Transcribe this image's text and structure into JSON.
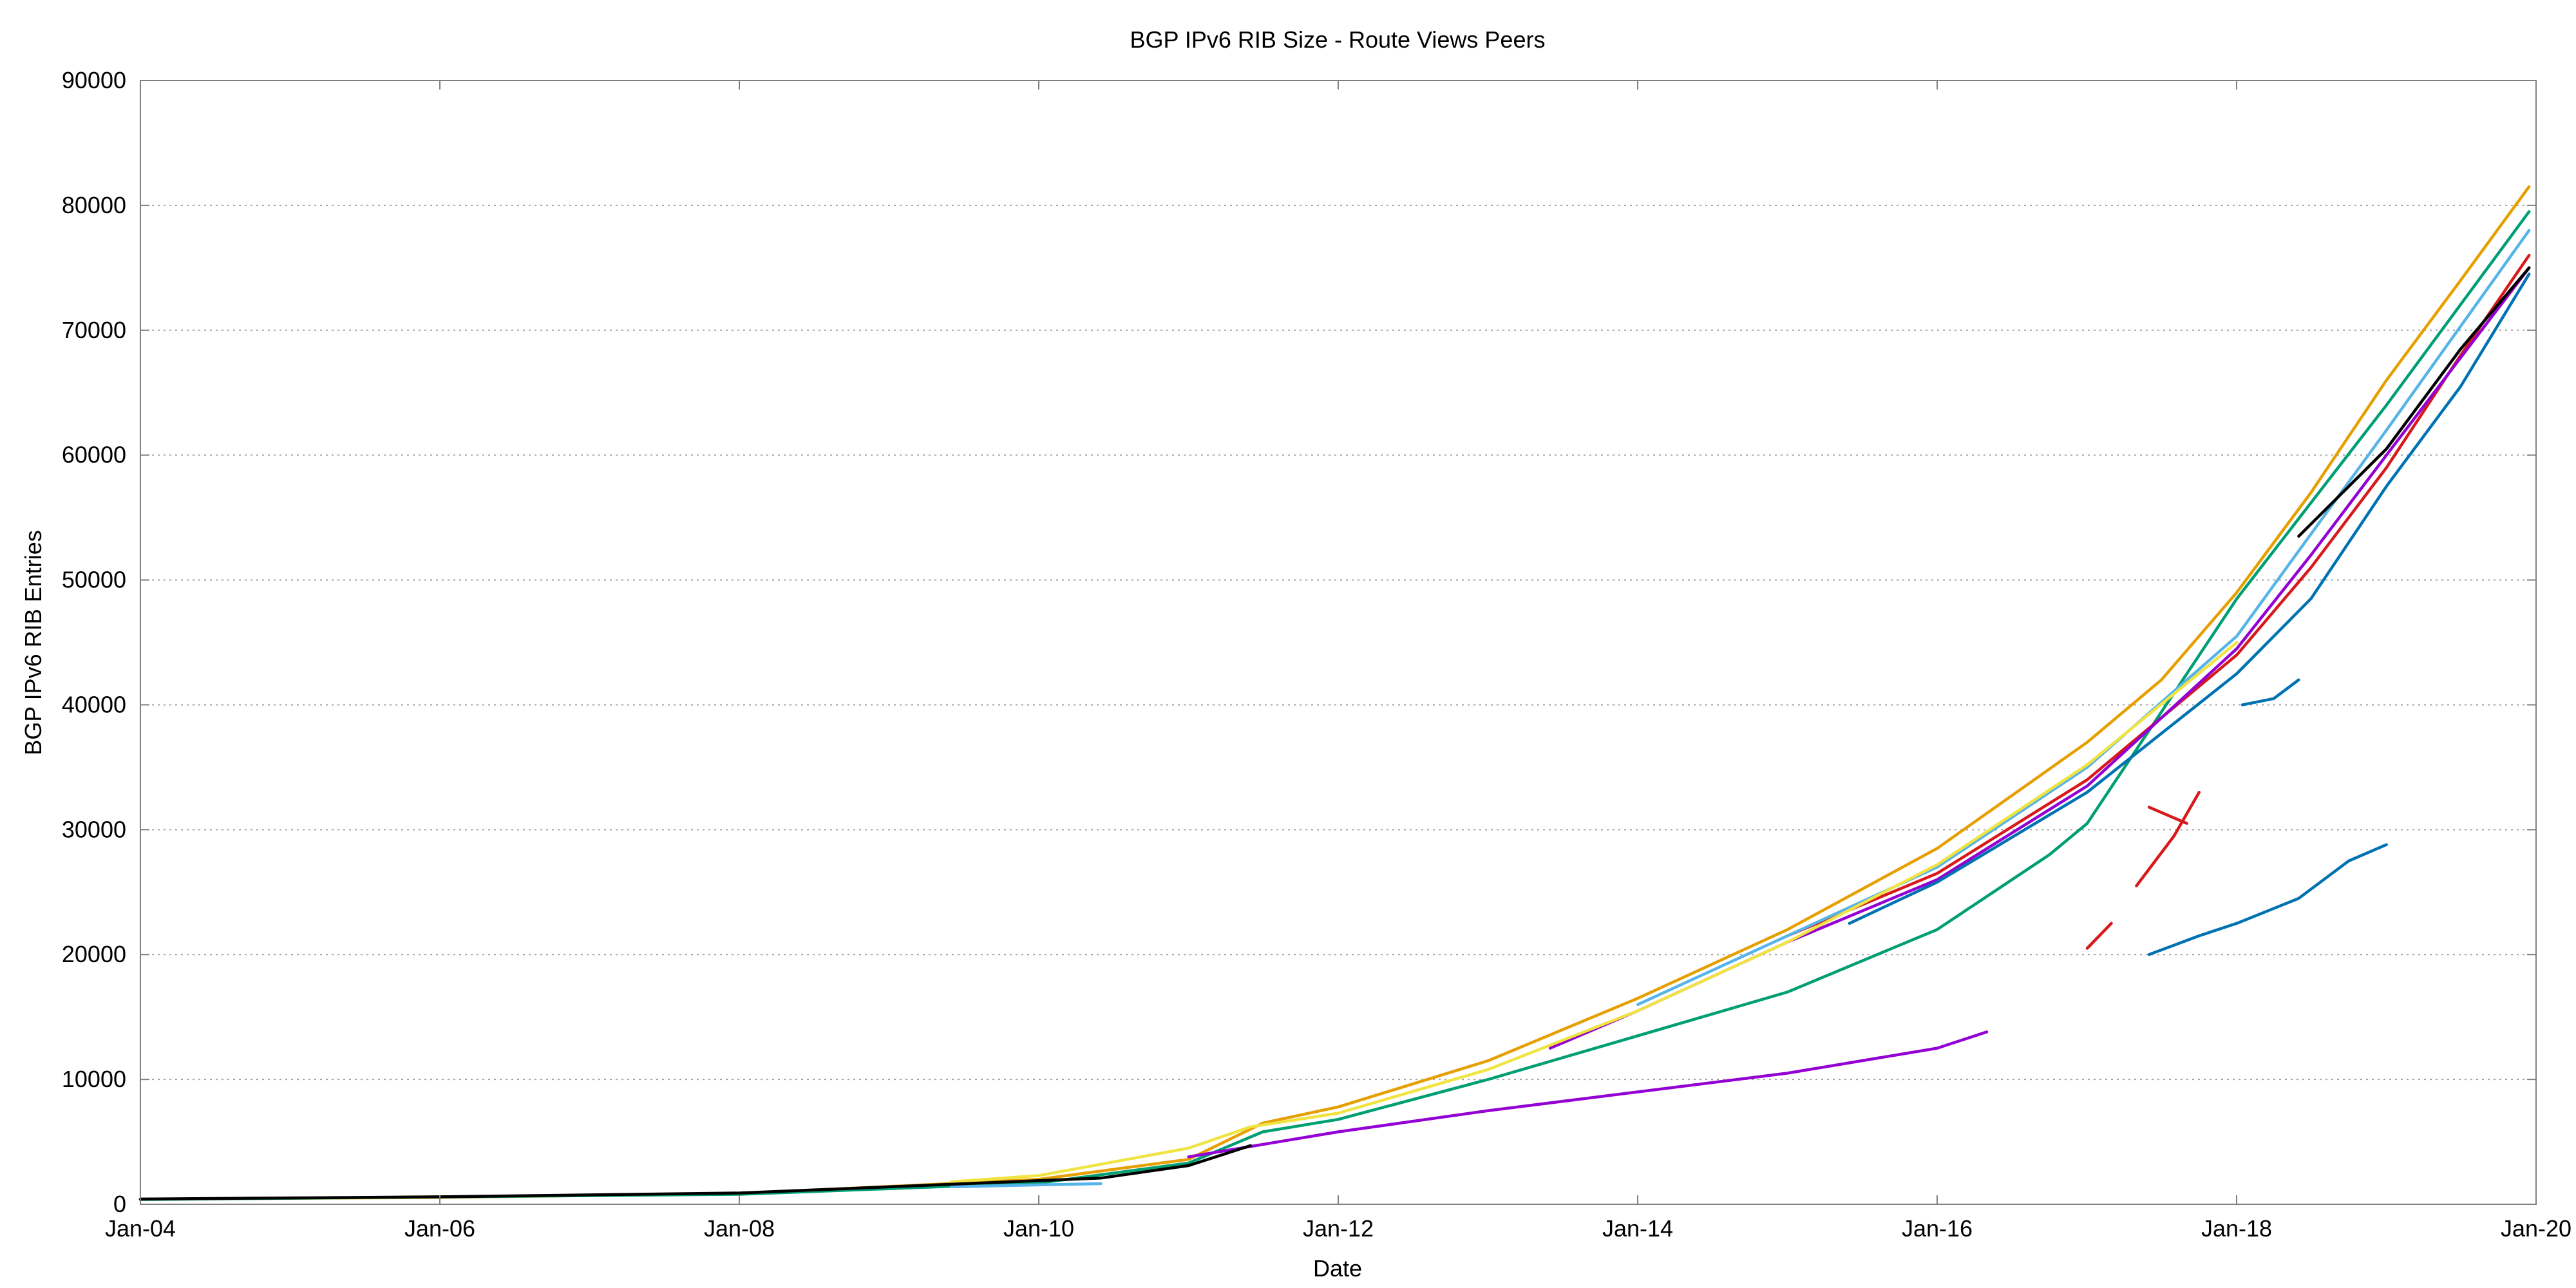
{
  "chart_data": {
    "type": "line",
    "title": "BGP IPv6 RIB Size - Route Views Peers",
    "xlabel": "Date",
    "ylabel": "BGP IPv6 RIB Entries",
    "xlim": [
      "2004-01-01",
      "2020-01-01"
    ],
    "ylim": [
      0,
      90000
    ],
    "grid": true,
    "legend": "none",
    "x_ticks": [
      "Jan-04",
      "Jan-06",
      "Jan-08",
      "Jan-10",
      "Jan-12",
      "Jan-14",
      "Jan-16",
      "Jan-18",
      "Jan-20"
    ],
    "y_ticks": [
      "0",
      "10000",
      "20000",
      "30000",
      "40000",
      "50000",
      "60000",
      "70000",
      "80000",
      "90000"
    ],
    "series": [
      {
        "color": "#e69f00",
        "points": [
          [
            "2004-01-01",
            400
          ],
          [
            "2006-01-01",
            550
          ],
          [
            "2008-01-01",
            850
          ],
          [
            "2010-01-01",
            2000
          ],
          [
            "2011-01-01",
            3600
          ],
          [
            "2011-07-01",
            6500
          ],
          [
            "2012-01-01",
            7800
          ],
          [
            "2013-01-01",
            11500
          ],
          [
            "2014-01-01",
            16500
          ],
          [
            "2015-01-01",
            22000
          ],
          [
            "2016-01-01",
            28500
          ],
          [
            "2017-01-01",
            37000
          ],
          [
            "2017-07-01",
            42000
          ],
          [
            "2018-01-01",
            49000
          ],
          [
            "2018-07-01",
            57000
          ],
          [
            "2019-01-01",
            66000
          ],
          [
            "2019-07-01",
            74000
          ],
          [
            "2019-12-15",
            81500
          ]
        ]
      },
      {
        "color": "#009e73",
        "points": [
          [
            "2004-01-01",
            380
          ],
          [
            "2008-01-01",
            800
          ],
          [
            "2010-01-01",
            1700
          ],
          [
            "2011-01-01",
            3300
          ],
          [
            "2011-07-01",
            5800
          ],
          [
            "2012-01-01",
            6800
          ],
          [
            "2013-01-01",
            10000
          ],
          [
            "2014-01-01",
            13500
          ],
          [
            "2015-01-01",
            17000
          ],
          [
            "2016-01-01",
            22000
          ],
          [
            "2016-10-01",
            28000
          ],
          [
            "2017-01-01",
            30500
          ],
          [
            "2018-01-01",
            48500
          ],
          [
            "2019-01-01",
            64000
          ],
          [
            "2019-12-15",
            79500
          ]
        ]
      },
      {
        "color": "#d7191c",
        "points": [
          [
            "2015-01-01",
            21500
          ],
          [
            "2016-01-01",
            26500
          ],
          [
            "2017-01-01",
            34000
          ],
          [
            "2018-01-01",
            44000
          ],
          [
            "2018-07-01",
            51000
          ],
          [
            "2019-01-01",
            59000
          ],
          [
            "2019-07-01",
            68000
          ],
          [
            "2019-12-15",
            76000
          ]
        ]
      },
      {
        "color": "#9400d3",
        "points": [
          [
            "2011-01-01",
            3800
          ],
          [
            "2012-01-01",
            5800
          ],
          [
            "2013-01-01",
            7500
          ],
          [
            "2014-01-01",
            9000
          ],
          [
            "2015-01-01",
            10500
          ],
          [
            "2016-01-01",
            12500
          ],
          [
            "2016-05-01",
            13800
          ]
        ]
      },
      {
        "color": "#9400d3",
        "points": [
          [
            "2013-06-01",
            12500
          ],
          [
            "2014-01-01",
            15500
          ],
          [
            "2015-01-01",
            21000
          ],
          [
            "2016-01-01",
            26000
          ],
          [
            "2017-01-01",
            33500
          ],
          [
            "2018-01-01",
            44500
          ],
          [
            "2018-07-01",
            52000
          ],
          [
            "2019-01-01",
            60000
          ],
          [
            "2019-12-15",
            75000
          ]
        ]
      },
      {
        "color": "#0072b2",
        "points": [
          [
            "2015-06-01",
            22500
          ],
          [
            "2016-01-01",
            25800
          ],
          [
            "2017-01-01",
            33000
          ],
          [
            "2018-01-01",
            42500
          ],
          [
            "2018-07-01",
            48500
          ],
          [
            "2019-01-01",
            57500
          ],
          [
            "2019-07-01",
            65500
          ],
          [
            "2019-12-15",
            74500
          ]
        ]
      },
      {
        "color": "#0072b2",
        "points": [
          [
            "2017-06-01",
            20000
          ],
          [
            "2017-10-01",
            21500
          ],
          [
            "2018-01-01",
            22500
          ],
          [
            "2018-06-01",
            24500
          ],
          [
            "2018-10-01",
            27500
          ],
          [
            "2019-01-01",
            28800
          ]
        ]
      },
      {
        "color": "#0072b2",
        "points": [
          [
            "2018-01-15",
            40000
          ],
          [
            "2018-04-01",
            40500
          ],
          [
            "2018-06-01",
            42000
          ]
        ]
      },
      {
        "color": "#56b4e9",
        "points": [
          [
            "2014-01-01",
            16000
          ],
          [
            "2015-01-01",
            21500
          ],
          [
            "2016-01-01",
            27000
          ],
          [
            "2017-01-01",
            35000
          ],
          [
            "2018-01-01",
            45500
          ],
          [
            "2019-01-01",
            62000
          ],
          [
            "2019-12-15",
            78000
          ]
        ]
      },
      {
        "color": "#56b4e9",
        "points": [
          [
            "2009-06-01",
            1400
          ],
          [
            "2010-01-01",
            1550
          ],
          [
            "2010-06-01",
            1650
          ]
        ]
      },
      {
        "color": "#f0e442",
        "points": [
          [
            "2009-06-01",
            1800
          ],
          [
            "2010-01-01",
            2300
          ],
          [
            "2011-01-01",
            4500
          ],
          [
            "2011-06-01",
            6200
          ],
          [
            "2012-01-01",
            7300
          ],
          [
            "2013-01-01",
            10800
          ],
          [
            "2014-01-01",
            15500
          ],
          [
            "2015-01-01",
            21000
          ],
          [
            "2016-01-01",
            27200
          ],
          [
            "2017-01-01",
            35200
          ],
          [
            "2018-01-01",
            45000
          ]
        ]
      },
      {
        "color": "#000000",
        "points": [
          [
            "2004-01-01",
            420
          ],
          [
            "2006-01-01",
            600
          ],
          [
            "2008-01-01",
            900
          ],
          [
            "2010-06-01",
            2100
          ],
          [
            "2011-01-01",
            3100
          ],
          [
            "2011-06-01",
            4700
          ]
        ]
      },
      {
        "color": "#000000",
        "points": [
          [
            "2018-06-01",
            53500
          ],
          [
            "2019-01-01",
            60500
          ],
          [
            "2019-07-01",
            68500
          ],
          [
            "2019-12-15",
            75000
          ]
        ]
      },
      {
        "color": "#d7191c",
        "points": [
          [
            "2017-01-01",
            20500
          ],
          [
            "2017-03-01",
            22500
          ]
        ]
      },
      {
        "color": "#d7191c",
        "points": [
          [
            "2017-05-01",
            25500
          ],
          [
            "2017-08-01",
            29500
          ],
          [
            "2017-10-01",
            33000
          ]
        ]
      },
      {
        "color": "#d7191c",
        "points": [
          [
            "2017-06-01",
            31800
          ],
          [
            "2017-09-01",
            30500
          ]
        ]
      }
    ]
  }
}
